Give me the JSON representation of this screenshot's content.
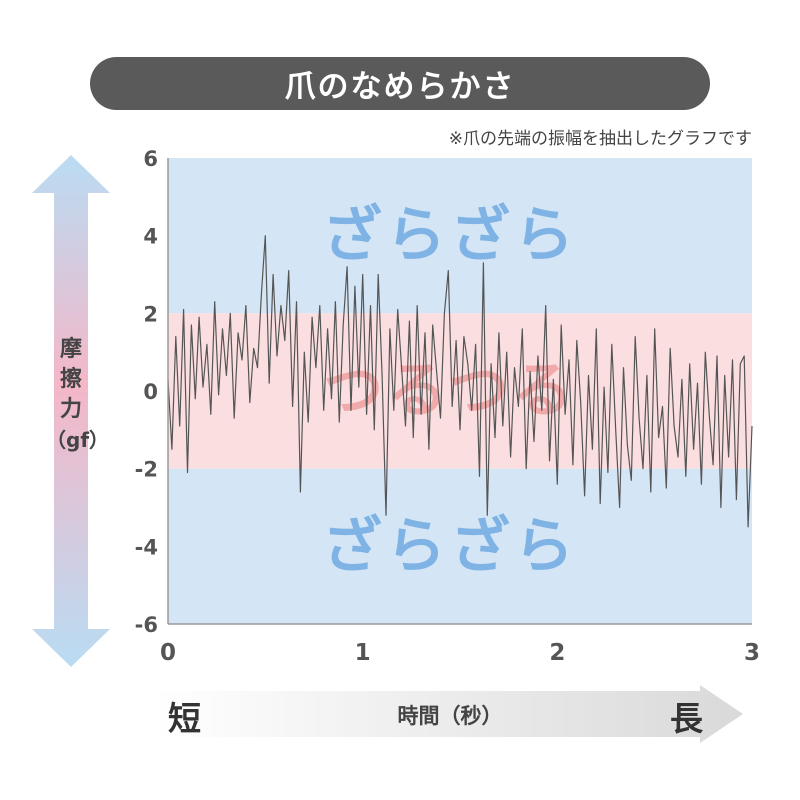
{
  "title": "爪のなめらかさ",
  "note": "※爪の先端の振幅を抽出したグラフです",
  "y_axis": {
    "label_chars": [
      "摩",
      "擦",
      "力"
    ],
    "unit": "（gf）"
  },
  "x_axis": {
    "label": "時間（秒）",
    "short": "短",
    "long": "長"
  },
  "zones": {
    "rough": "ざらざら",
    "smooth": "つるつる"
  },
  "colors": {
    "rough_zone": "#d4e5f5",
    "smooth_zone": "#fbdfe0",
    "rough_text": "#7fb3e5",
    "smooth_text": "#f2a9aa",
    "signal": "#555555",
    "title_bg": "#5a5a5a"
  },
  "chart_data": {
    "type": "line",
    "x_range": [
      0,
      3
    ],
    "y_range": [
      -6,
      6
    ],
    "x_ticks": [
      0,
      1,
      2,
      3
    ],
    "y_ticks": [
      6,
      4,
      2,
      0,
      -2,
      -4,
      -6
    ],
    "bands": [
      {
        "name": "ざらざら",
        "from": 2,
        "to": 6
      },
      {
        "name": "つるつる",
        "from": -2,
        "to": 2
      },
      {
        "name": "ざらざら",
        "from": -6,
        "to": -2
      }
    ],
    "series": [
      {
        "x": [
          0.0,
          0.02,
          0.04,
          0.06,
          0.08,
          0.1,
          0.12,
          0.14,
          0.16,
          0.18,
          0.2,
          0.22,
          0.24,
          0.26,
          0.28,
          0.3,
          0.32,
          0.34,
          0.36,
          0.38,
          0.4,
          0.42,
          0.44,
          0.46,
          0.48,
          0.5,
          0.52,
          0.54,
          0.56,
          0.58,
          0.6,
          0.62,
          0.64,
          0.66,
          0.68,
          0.7,
          0.72,
          0.74,
          0.76,
          0.78,
          0.8,
          0.82,
          0.84,
          0.86,
          0.88,
          0.9,
          0.92,
          0.94,
          0.96,
          0.98,
          1.0,
          1.02,
          1.04,
          1.06,
          1.08,
          1.1,
          1.12,
          1.14,
          1.16,
          1.18,
          1.2,
          1.22,
          1.24,
          1.26,
          1.28,
          1.3,
          1.32,
          1.34,
          1.36,
          1.38,
          1.4,
          1.42,
          1.44,
          1.46,
          1.48,
          1.5,
          1.52,
          1.54,
          1.56,
          1.58,
          1.6,
          1.62,
          1.64,
          1.66,
          1.68,
          1.7,
          1.72,
          1.74,
          1.76,
          1.78,
          1.8,
          1.82,
          1.84,
          1.86,
          1.88,
          1.9,
          1.92,
          1.94,
          1.96,
          1.98,
          2.0,
          2.02,
          2.04,
          2.06,
          2.08,
          2.1,
          2.12,
          2.14,
          2.16,
          2.18,
          2.2,
          2.22,
          2.24,
          2.26,
          2.28,
          2.3,
          2.32,
          2.34,
          2.36,
          2.38,
          2.4,
          2.42,
          2.44,
          2.46,
          2.48,
          2.5,
          2.52,
          2.54,
          2.56,
          2.58,
          2.6,
          2.62,
          2.64,
          2.66,
          2.68,
          2.7,
          2.72,
          2.74,
          2.76,
          2.78,
          2.8,
          2.82,
          2.84,
          2.86,
          2.88,
          2.9,
          2.92,
          2.94,
          2.96,
          2.98,
          3.0
        ],
        "y": [
          0.3,
          -1.5,
          1.4,
          -0.9,
          2.1,
          -2.1,
          1.7,
          -0.2,
          1.9,
          0.1,
          1.2,
          -0.6,
          2.3,
          -0.1,
          1.6,
          0.4,
          2.0,
          -0.7,
          1.5,
          0.8,
          2.2,
          -0.3,
          1.1,
          0.6,
          2.5,
          4.0,
          0.2,
          3.0,
          0.9,
          2.2,
          1.3,
          3.1,
          -0.4,
          2.3,
          -2.6,
          1.0,
          -0.8,
          1.9,
          0.6,
          2.2,
          -0.5,
          1.6,
          -0.2,
          2.3,
          -0.8,
          1.7,
          3.2,
          -0.5,
          2.7,
          0.1,
          3.0,
          -0.6,
          2.2,
          -1.0,
          3.0,
          0.4,
          -3.2,
          1.6,
          -0.5,
          2.1,
          0.6,
          -0.9,
          1.8,
          -1.2,
          2.2,
          -0.6,
          1.5,
          -1.5,
          1.7,
          0.5,
          -0.7,
          2.0,
          3.1,
          -0.4,
          1.3,
          -1.0,
          1.4,
          0.7,
          -0.5,
          1.2,
          -2.2,
          3.3,
          -3.2,
          0.7,
          -1.2,
          1.5,
          -0.9,
          1.0,
          -1.7,
          0.6,
          -0.4,
          1.6,
          -2.0,
          0.5,
          -1.3,
          0.9,
          -0.5,
          2.2,
          -1.8,
          0.3,
          -2.4,
          1.7,
          -0.6,
          0.8,
          -1.9,
          1.3,
          -0.3,
          -2.7,
          0.4,
          -1.5,
          1.6,
          -2.9,
          0.1,
          -2.1,
          1.2,
          -1.0,
          -3.0,
          0.6,
          -1.4,
          -2.3,
          1.4,
          -0.7,
          -2.0,
          0.4,
          -2.6,
          1.6,
          -1.2,
          -0.4,
          -2.5,
          1.1,
          -0.9,
          -1.7,
          0.3,
          -2.2,
          0.7,
          -1.5,
          0.2,
          -2.4,
          1.0,
          -0.6,
          -1.9,
          0.9,
          -3.0,
          0.4,
          -1.7,
          0.8,
          -2.8,
          0.7,
          0.9,
          -3.5,
          -0.9
        ]
      }
    ]
  }
}
